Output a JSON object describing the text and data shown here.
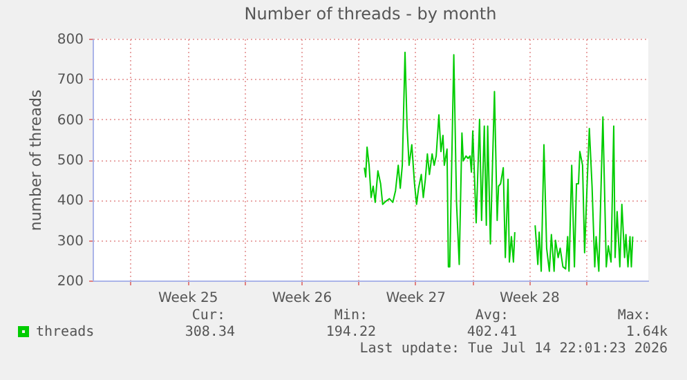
{
  "chart_data": {
    "type": "line",
    "title": "Number of threads - by month",
    "ylabel": "number of threads",
    "xlim": [
      "2026-06-11T16:00",
      "2026-07-15T20:00"
    ],
    "ylim": [
      200,
      800
    ],
    "yticks": [
      200,
      300,
      400,
      500,
      600,
      700,
      800
    ],
    "xticks": [
      {
        "value": "2026-06-14",
        "label": null
      },
      {
        "value": "2026-06-17T12:00",
        "label": "Week 25"
      },
      {
        "value": "2026-06-21",
        "label": null
      },
      {
        "value": "2026-06-24T12:00",
        "label": "Week 26"
      },
      {
        "value": "2026-06-28",
        "label": null
      },
      {
        "value": "2026-07-01T12:00",
        "label": "Week 27"
      },
      {
        "value": "2026-07-05",
        "label": null
      },
      {
        "value": "2026-07-08T12:00",
        "label": "Week 28"
      },
      {
        "value": "2026-07-12",
        "label": null
      }
    ],
    "grid": true,
    "legend": "bottom left",
    "annotations": [
      "Cur:",
      "308.34",
      "Min:",
      "194.22",
      "Avg:",
      "402.41",
      "Max:",
      "1.64k",
      "Last update: Tue Jul 14 22:01:23 2026"
    ],
    "series": [
      {
        "name": "threads",
        "color": "#00cc00",
        "x": [
          "2026-06-28T09:00",
          "2026-06-28T11:00",
          "2026-06-28T13:00",
          "2026-06-28T16:00",
          "2026-06-28T19:00",
          "2026-06-28T22:00",
          "2026-06-29T01:00",
          "2026-06-29T05:00",
          "2026-06-29T09:00",
          "2026-06-29T12:00",
          "2026-06-29T17:00",
          "2026-06-29T22:00",
          "2026-06-30T03:00",
          "2026-06-30T07:00",
          "2026-06-30T11:00",
          "2026-06-30T14:00",
          "2026-06-30T17:00",
          "2026-06-30T21:00",
          "2026-07-01T00:00",
          "2026-07-01T03:00",
          "2026-07-01T07:00",
          "2026-07-01T11:00",
          "2026-07-01T14:00",
          "2026-07-01T17:00",
          "2026-07-01T21:00",
          "2026-07-02T00:00",
          "2026-07-02T03:00",
          "2026-07-02T06:00",
          "2026-07-02T09:00",
          "2026-07-02T13:00",
          "2026-07-02T16:00",
          "2026-07-02T19:00",
          "2026-07-02T23:00",
          "2026-07-03T02:00",
          "2026-07-03T05:00",
          "2026-07-03T07:00",
          "2026-07-03T11:00",
          "2026-07-03T13:00",
          "2026-07-03T15:00",
          "2026-07-03T21:00",
          "2026-07-04T01:00",
          "2026-07-04T05:00",
          "2026-07-04T09:00",
          "2026-07-04T11:00",
          "2026-07-04T15:00",
          "2026-07-04T18:00",
          "2026-07-04T21:00",
          "2026-07-04T23:00",
          "2026-07-05T01:00",
          "2026-07-05T06:00",
          "2026-07-05T11:00",
          "2026-07-05T14:00",
          "2026-07-05T18:00",
          "2026-07-05T21:00",
          "2026-07-05T23:00",
          "2026-07-06T03:00",
          "2026-07-06T09:00",
          "2026-07-06T13:00",
          "2026-07-06T15:00",
          "2026-07-06T18:00",
          "2026-07-06T22:00",
          "2026-07-07T01:00",
          "2026-07-07T05:00",
          "2026-07-07T07:00",
          "2026-07-07T10:00",
          "2026-07-07T13:00",
          "2026-07-07T15:00",
          "2026-07-08T05:00",
          "2026-07-08T21:00",
          "2026-07-09T01:00",
          "2026-07-09T03:00",
          "2026-07-09T06:00",
          "2026-07-09T10:00",
          "2026-07-09T14:00",
          "2026-07-09T18:00",
          "2026-07-09T21:00",
          "2026-07-10T01:00",
          "2026-07-10T03:00",
          "2026-07-10T07:00",
          "2026-07-10T10:00",
          "2026-07-10T14:00",
          "2026-07-10T18:00",
          "2026-07-10T21:00",
          "2026-07-10T23:00",
          "2026-07-11T03:00",
          "2026-07-11T07:00",
          "2026-07-11T10:00",
          "2026-07-11T13:00",
          "2026-07-11T15:00",
          "2026-07-11T19:00",
          "2026-07-11T22:00",
          "2026-07-12T02:00",
          "2026-07-12T05:00",
          "2026-07-12T09:00",
          "2026-07-12T13:00",
          "2026-07-12T15:00",
          "2026-07-12T19:00",
          "2026-07-13T01:00",
          "2026-07-13T06:00",
          "2026-07-13T09:00",
          "2026-07-13T13:00",
          "2026-07-13T17:00",
          "2026-07-13T19:00",
          "2026-07-13T22:00",
          "2026-07-14T02:00",
          "2026-07-14T05:00",
          "2026-07-14T09:00",
          "2026-07-14T11:00",
          "2026-07-14T14:00",
          "2026-07-14T17:00",
          "2026-07-14T19:00",
          "2026-07-14T21:00"
        ],
        "values": [
          480,
          457,
          531,
          486,
          406,
          434,
          394,
          472,
          440,
          389,
          397,
          403,
          394,
          423,
          486,
          429,
          486,
          766,
          583,
          486,
          537,
          440,
          389,
          429,
          463,
          406,
          451,
          514,
          463,
          514,
          486,
          509,
          611,
          520,
          560,
          486,
          526,
          234,
          234,
          760,
          394,
          240,
          566,
          497,
          509,
          503,
          509,
          469,
          571,
          343,
          600,
          349,
          583,
          337,
          583,
          291,
          669,
          349,
          434,
          440,
          480,
          257,
          451,
          246,
          309,
          246,
          320,
          null,
          337,
          240,
          320,
          223,
          537,
          280,
          223,
          314,
          223,
          300,
          257,
          280,
          234,
          229,
          309,
          223,
          486,
          234,
          440,
          440,
          520,
          486,
          269,
          451,
          577,
          434,
          234,
          309,
          223,
          606,
          234,
          286,
          246,
          583,
          257,
          371,
          234,
          389,
          257,
          314,
          234,
          309,
          234,
          309
        ]
      }
    ]
  }
}
